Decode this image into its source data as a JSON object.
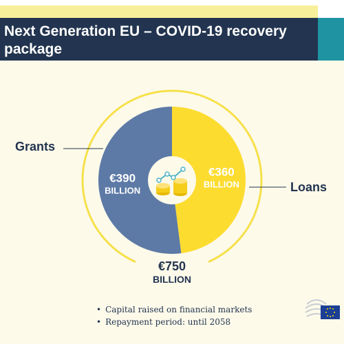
{
  "header": {
    "title": "Next Generation EU – COVID-19 recovery package"
  },
  "chart_data": {
    "type": "pie",
    "categories": [
      "Grants",
      "Loans"
    ],
    "values": [
      390,
      360
    ],
    "value_labels": [
      {
        "amount": "€390",
        "unit": "BILLION"
      },
      {
        "amount": "€360",
        "unit": "BILLION"
      }
    ],
    "colors": [
      "#5d7aa6",
      "#fddc30"
    ],
    "total": {
      "amount": "€750",
      "unit": "BILLION"
    }
  },
  "notes": [
    "Capital raised on financial markets",
    "Repayment period: until 2058"
  ],
  "logo": {
    "icon": "eu-council-logo"
  },
  "colors": {
    "header_bg": "#22344f",
    "accent": "#1f93a2",
    "ring": "#f6e04a"
  }
}
